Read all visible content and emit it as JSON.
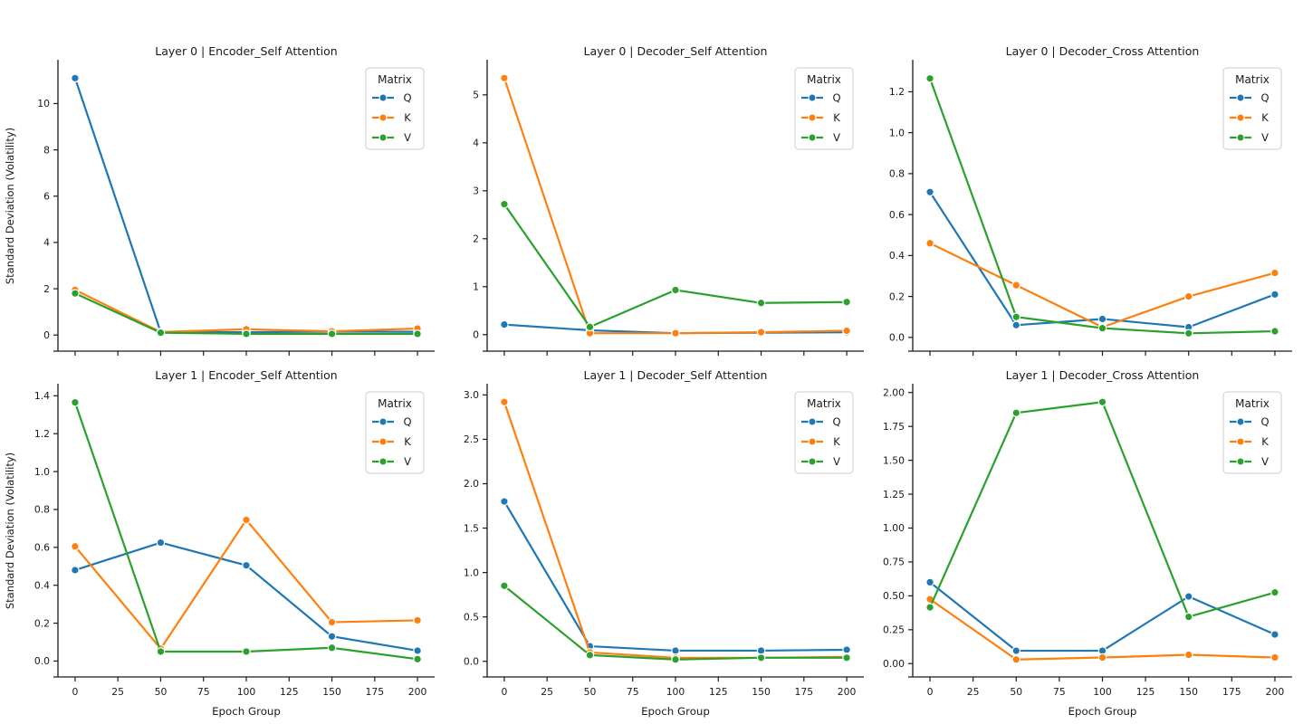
{
  "figure": {
    "background": "#ffffff",
    "xlabel": "Epoch Group",
    "ylabel": "Standard Deviation (Volatility)",
    "legend": {
      "title": "Matrix",
      "entries": [
        {
          "label": "Q",
          "color": "#1f77b4"
        },
        {
          "label": "K",
          "color": "#ff7f0e"
        },
        {
          "label": "V",
          "color": "#2ca02c"
        }
      ]
    },
    "xlim": [
      -10,
      210
    ],
    "xticks": [
      0,
      25,
      50,
      75,
      100,
      125,
      150,
      175,
      200
    ],
    "xtick_labels": [
      "0",
      "25",
      "50",
      "75",
      "100",
      "125",
      "150",
      "175",
      "200"
    ],
    "grid": false,
    "legend_position": "upper right"
  },
  "chart_data": [
    {
      "type": "line",
      "title": "Layer 0 | Encoder_Self Attention",
      "x": [
        0,
        50,
        100,
        150,
        200
      ],
      "series": [
        {
          "name": "Q",
          "color": "#1f77b4",
          "values": [
            11.1,
            0.13,
            0.12,
            0.15,
            0.14
          ]
        },
        {
          "name": "K",
          "color": "#ff7f0e",
          "values": [
            1.95,
            0.13,
            0.25,
            0.16,
            0.28
          ]
        },
        {
          "name": "V",
          "color": "#2ca02c",
          "values": [
            1.8,
            0.1,
            0.05,
            0.05,
            0.05
          ]
        }
      ],
      "ylim": [
        -0.5,
        11.66
      ],
      "yticks": [
        0,
        2,
        4,
        6,
        8,
        10
      ],
      "ytick_labels": [
        "0",
        "2",
        "4",
        "6",
        "8",
        "10"
      ],
      "ylabel": "Standard Deviation (Volatility)",
      "xlabel": "",
      "show_xtick_labels": false
    },
    {
      "type": "line",
      "title": "Layer 0 | Decoder_Self Attention",
      "x": [
        0,
        50,
        100,
        150,
        200
      ],
      "series": [
        {
          "name": "Q",
          "color": "#1f77b4",
          "values": [
            0.21,
            0.09,
            0.03,
            0.04,
            0.05
          ]
        },
        {
          "name": "K",
          "color": "#ff7f0e",
          "values": [
            5.35,
            0.03,
            0.03,
            0.05,
            0.08
          ]
        },
        {
          "name": "V",
          "color": "#2ca02c",
          "values": [
            2.72,
            0.16,
            0.93,
            0.66,
            0.68
          ]
        }
      ],
      "ylim": [
        -0.25,
        5.62
      ],
      "yticks": [
        0,
        1,
        2,
        3,
        4,
        5
      ],
      "ytick_labels": [
        "0",
        "1",
        "2",
        "3",
        "4",
        "5"
      ],
      "ylabel": "",
      "xlabel": "",
      "show_xtick_labels": false
    },
    {
      "type": "line",
      "title": "Layer 0 | Decoder_Cross Attention",
      "x": [
        0,
        50,
        100,
        150,
        200
      ],
      "series": [
        {
          "name": "Q",
          "color": "#1f77b4",
          "values": [
            0.71,
            0.06,
            0.09,
            0.05,
            0.21
          ]
        },
        {
          "name": "K",
          "color": "#ff7f0e",
          "values": [
            0.46,
            0.255,
            0.05,
            0.2,
            0.315
          ]
        },
        {
          "name": "V",
          "color": "#2ca02c",
          "values": [
            1.265,
            0.1,
            0.045,
            0.02,
            0.03
          ]
        }
      ],
      "ylim": [
        -0.045,
        1.33
      ],
      "yticks": [
        0.0,
        0.2,
        0.4,
        0.6,
        0.8,
        1.0,
        1.2
      ],
      "ytick_labels": [
        "0.0",
        "0.2",
        "0.4",
        "0.6",
        "0.8",
        "1.0",
        "1.2"
      ],
      "ylabel": "",
      "xlabel": "",
      "show_xtick_labels": false
    },
    {
      "type": "line",
      "title": "Layer 1 | Encoder_Self Attention",
      "x": [
        0,
        50,
        100,
        150,
        200
      ],
      "series": [
        {
          "name": "Q",
          "color": "#1f77b4",
          "values": [
            0.48,
            0.625,
            0.505,
            0.13,
            0.055
          ]
        },
        {
          "name": "K",
          "color": "#ff7f0e",
          "values": [
            0.605,
            0.065,
            0.745,
            0.205,
            0.215
          ]
        },
        {
          "name": "V",
          "color": "#2ca02c",
          "values": [
            1.365,
            0.05,
            0.05,
            0.07,
            0.01
          ]
        }
      ],
      "ylim": [
        -0.06,
        1.435
      ],
      "yticks": [
        0.0,
        0.2,
        0.4,
        0.6,
        0.8,
        1.0,
        1.2,
        1.4
      ],
      "ytick_labels": [
        "0.0",
        "0.2",
        "0.4",
        "0.6",
        "0.8",
        "1.0",
        "1.2",
        "1.4"
      ],
      "ylabel": "Standard Deviation (Volatility)",
      "xlabel": "Epoch Group",
      "show_xtick_labels": true
    },
    {
      "type": "line",
      "title": "Layer 1 | Decoder_Self Attention",
      "x": [
        0,
        50,
        100,
        150,
        200
      ],
      "series": [
        {
          "name": "Q",
          "color": "#1f77b4",
          "values": [
            1.8,
            0.17,
            0.12,
            0.12,
            0.13
          ]
        },
        {
          "name": "K",
          "color": "#ff7f0e",
          "values": [
            2.92,
            0.1,
            0.04,
            0.04,
            0.05
          ]
        },
        {
          "name": "V",
          "color": "#2ca02c",
          "values": [
            0.85,
            0.07,
            0.02,
            0.04,
            0.04
          ]
        }
      ],
      "ylim": [
        -0.125,
        3.065
      ],
      "yticks": [
        0.0,
        0.5,
        1.0,
        1.5,
        2.0,
        2.5,
        3.0
      ],
      "ytick_labels": [
        "0.0",
        "0.5",
        "1.0",
        "1.5",
        "2.0",
        "2.5",
        "3.0"
      ],
      "ylabel": "",
      "xlabel": "Epoch Group",
      "show_xtick_labels": true
    },
    {
      "type": "line",
      "title": "Layer 1 | Decoder_Cross Attention",
      "x": [
        0,
        50,
        100,
        150,
        200
      ],
      "series": [
        {
          "name": "Q",
          "color": "#1f77b4",
          "values": [
            0.6,
            0.095,
            0.095,
            0.495,
            0.215
          ]
        },
        {
          "name": "K",
          "color": "#ff7f0e",
          "values": [
            0.475,
            0.03,
            0.045,
            0.065,
            0.045
          ]
        },
        {
          "name": "V",
          "color": "#2ca02c",
          "values": [
            0.415,
            1.85,
            1.93,
            0.345,
            0.525
          ]
        }
      ],
      "ylim": [
        -0.065,
        2.025
      ],
      "yticks": [
        0.0,
        0.25,
        0.5,
        0.75,
        1.0,
        1.25,
        1.5,
        1.75,
        2.0
      ],
      "ytick_labels": [
        "0.00",
        "0.25",
        "0.50",
        "0.75",
        "1.00",
        "1.25",
        "1.50",
        "1.75",
        "2.00"
      ],
      "ylabel": "",
      "xlabel": "Epoch Group",
      "show_xtick_labels": true
    }
  ]
}
